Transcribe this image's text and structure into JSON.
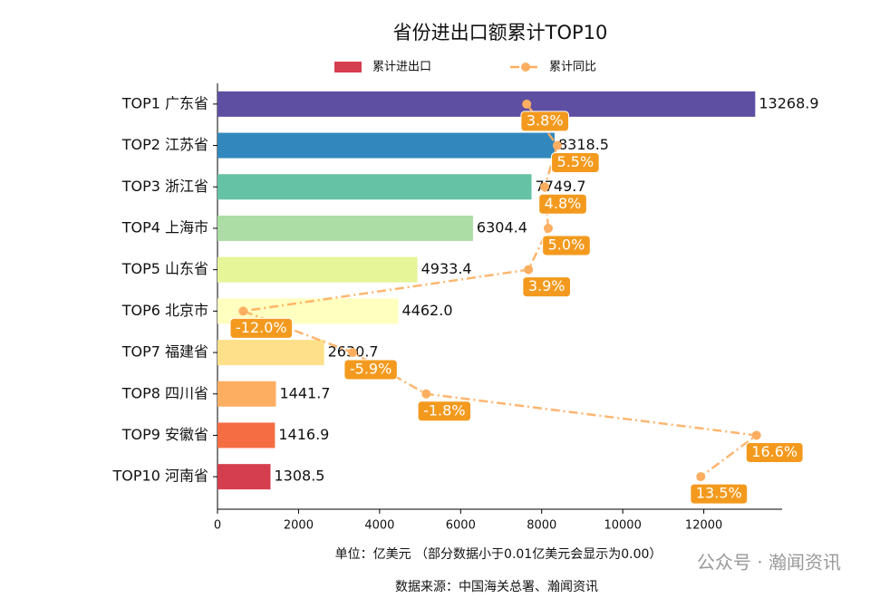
{
  "chart_data": {
    "type": "bar",
    "orientation": "horizontal",
    "title": "省份进出口额累计TOP10",
    "categories": [
      "TOP1 广东省",
      "TOP2 江苏省",
      "TOP3 浙江省",
      "TOP4 上海市",
      "TOP5 山东省",
      "TOP6 北京市",
      "TOP7 福建省",
      "TOP8 四川省",
      "TOP9 安徽省",
      "TOP10 河南省"
    ],
    "series": [
      {
        "name": "累计进出口",
        "color": "#d53e4f",
        "colors": [
          "#5e4fa2",
          "#3288bd",
          "#66c2a5",
          "#abdda4",
          "#e6f598",
          "#ffffbf",
          "#fee08b",
          "#fdae61",
          "#f46d43",
          "#d53e4f"
        ],
        "values": [
          13268.9,
          8318.5,
          7749.7,
          6304.4,
          4933.4,
          4462.0,
          2630.7,
          1441.7,
          1416.9,
          1308.5
        ],
        "value_labels": [
          "13268.9",
          "8318.5",
          "7749.7",
          "6304.4",
          "4933.4",
          "4462.0",
          "2630.7",
          "1441.7",
          "1416.9",
          "1308.5"
        ]
      },
      {
        "name": "累计同比",
        "type": "line",
        "axis": "x2",
        "color": "#fdae61",
        "label_color": "#f39a1e",
        "values": [
          3.8,
          5.5,
          4.8,
          5.0,
          3.9,
          -12.0,
          -5.9,
          -1.8,
          16.6,
          13.5
        ],
        "value_labels": [
          "3.8%",
          "5.5%",
          "4.8%",
          "5.0%",
          "3.9%",
          "-12.0%",
          "-5.9%",
          "-1.8%",
          "16.6%",
          "13.5%"
        ]
      }
    ],
    "xlim": [
      0,
      13932
    ],
    "xticks": [
      0,
      2000,
      4000,
      6000,
      8000,
      10000,
      12000
    ],
    "x2lim": [
      -13.43,
      18.03
    ],
    "xlabel": "单位：亿美元  （部分数据小于0.01亿美元会显示为0.00）",
    "source": "数据来源：中国海关总署、瀚闻资讯",
    "watermark": "公众号 · 瀚闻资讯"
  }
}
